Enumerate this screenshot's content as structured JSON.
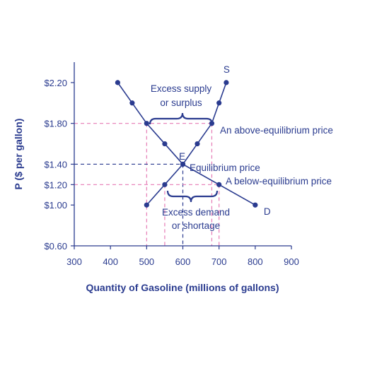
{
  "chart_data": {
    "type": "line",
    "xlabel": "Quantity of Gasoline (millions of gallons)",
    "ylabel": "P ($ per gallon)",
    "xlim": [
      300,
      900
    ],
    "ylim": [
      0.6,
      2.4
    ],
    "x_ticks": [
      300,
      400,
      500,
      600,
      700,
      800,
      900
    ],
    "x_tick_labels": [
      "300",
      "400",
      "500",
      "600",
      "700",
      "800",
      "900"
    ],
    "y_ticks": [
      0.6,
      1.0,
      1.2,
      1.4,
      1.8,
      2.2
    ],
    "y_tick_labels": [
      "$0.60",
      "$1.00",
      "$1.20",
      "$1.40",
      "$1.80",
      "$2.20"
    ],
    "grid": false,
    "series": [
      {
        "name": "S",
        "points": [
          [
            500,
            1.0
          ],
          [
            550,
            1.2
          ],
          [
            600,
            1.4
          ],
          [
            640,
            1.6
          ],
          [
            680,
            1.8
          ],
          [
            700,
            2.0
          ],
          [
            720,
            2.2
          ]
        ]
      },
      {
        "name": "D",
        "points": [
          [
            420,
            2.2
          ],
          [
            460,
            2.0
          ],
          [
            500,
            1.8
          ],
          [
            550,
            1.6
          ],
          [
            600,
            1.4
          ],
          [
            700,
            1.2
          ],
          [
            800,
            1.0
          ]
        ]
      }
    ],
    "reference_lines": [
      {
        "price": 1.8,
        "quantities": [
          500,
          680
        ],
        "style": "dashed-pink"
      },
      {
        "price": 1.4,
        "quantities": [
          600
        ],
        "style": "dashed-blue"
      },
      {
        "price": 1.2,
        "quantities": [
          550,
          700
        ],
        "style": "dashed-pink"
      }
    ],
    "equilibrium_label": "E",
    "annotations": {
      "excess_supply_line1": "Excess supply",
      "excess_supply_line2": "or surplus",
      "above_price": "An above-equilibrium price",
      "equilibrium_price": "Equilibrium price",
      "below_price": "A below-equilibrium price",
      "excess_demand_line1": "Excess demand",
      "excess_demand_line2": "or shortage"
    },
    "colors": {
      "curve": "#2a3b8f",
      "point": "#2a3b8f",
      "dashed_pink": "#e67bb5",
      "dashed_blue": "#2a3b8f",
      "text": "#2a3b8f"
    }
  }
}
